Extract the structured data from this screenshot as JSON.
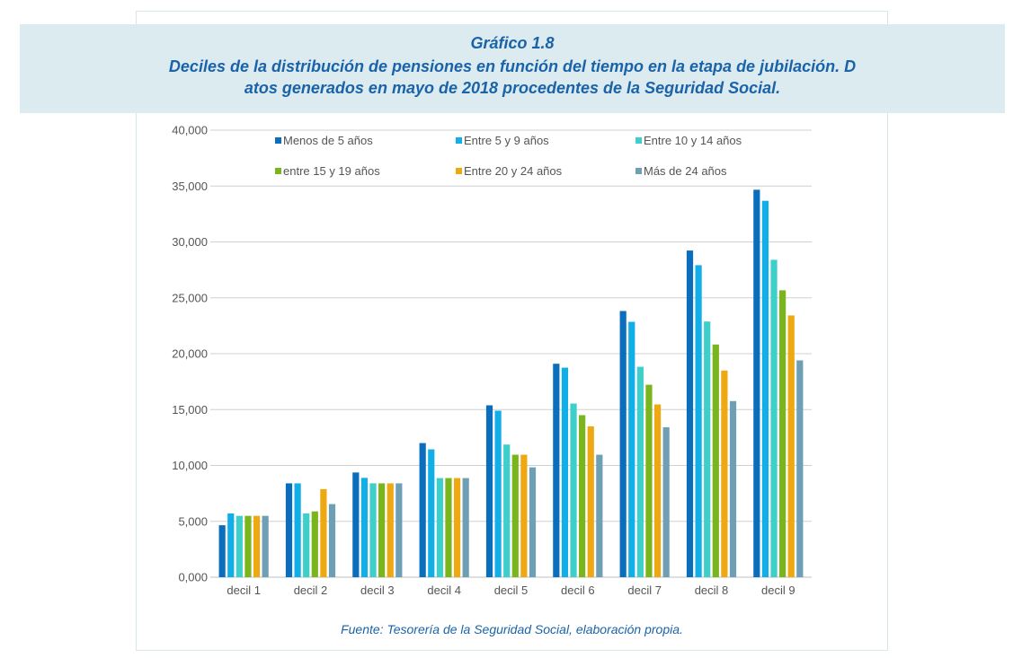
{
  "header": {
    "figure_label": "Gráfico 1.8",
    "title_line1": "Deciles de la distribución de pensiones en función del tiempo en la etapa de jubilación. D",
    "title_line2": "atos generados en mayo de 2018 procedentes de la Seguridad Social."
  },
  "source": "Fuente: Tesorería de la Seguridad Social, elaboración propia.",
  "colors": {
    "title": "#1a63a8",
    "title_band": "#dcebef",
    "grid": "#d0d0d0"
  },
  "chart_data": {
    "type": "bar",
    "title": "Deciles de la distribución de pensiones en función del tiempo en la etapa de jubilación",
    "xlabel": "",
    "ylabel": "",
    "ylim": [
      0,
      40000
    ],
    "yticks": [
      0,
      5000,
      10000,
      15000,
      20000,
      25000,
      30000,
      35000,
      40000
    ],
    "ytick_labels": [
      "0,000",
      "5,000",
      "10,000",
      "15,000",
      "20,000",
      "25,000",
      "30,000",
      "35,000",
      "40,000"
    ],
    "grid": true,
    "legend_position": "top",
    "categories": [
      "decil 1",
      "decil 2",
      "decil 3",
      "decil 4",
      "decil 5",
      "decil 6",
      "decil 7",
      "decil 8",
      "decil 9"
    ],
    "series": [
      {
        "name": "Menos de 5 años",
        "color": "#0a6ebd",
        "values": [
          4650,
          8400,
          9370,
          12000,
          15380,
          19100,
          23820,
          29230,
          34670
        ]
      },
      {
        "name": "Entre 5 y 9 años",
        "color": "#12aee8",
        "values": [
          5710,
          8400,
          8890,
          11440,
          14900,
          18750,
          22850,
          27920,
          33680
        ]
      },
      {
        "name": "Entre 10 y 14 años",
        "color": "#3ecfcb",
        "values": [
          5490,
          5710,
          8400,
          8870,
          11870,
          15540,
          18830,
          22880,
          28400
        ]
      },
      {
        "name": "entre 15 y 19 años",
        "color": "#7ab51d",
        "values": [
          5490,
          5890,
          8400,
          8870,
          10960,
          14500,
          17220,
          20820,
          25670
        ]
      },
      {
        "name": "Entre 20 y 24 años",
        "color": "#eda812",
        "values": [
          5490,
          7880,
          8400,
          8870,
          10960,
          13500,
          15460,
          18490,
          23420
        ]
      },
      {
        "name": "Más de 24 años",
        "color": "#6f9fb5",
        "values": [
          5490,
          6540,
          8400,
          8870,
          9830,
          10960,
          13420,
          15760,
          19400
        ]
      }
    ]
  }
}
